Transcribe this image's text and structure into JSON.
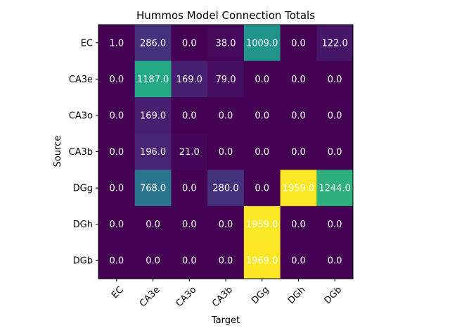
{
  "chart_data": {
    "type": "heatmap",
    "title": "Hummos Model Connection Totals",
    "xlabel": "Target",
    "ylabel": "Source",
    "x_categories": [
      "EC",
      "CA3e",
      "CA3o",
      "CA3b",
      "DGg",
      "DGh",
      "DGb"
    ],
    "y_categories": [
      "EC",
      "CA3e",
      "CA3o",
      "CA3b",
      "DGg",
      "DGh",
      "DGb"
    ],
    "values": [
      [
        1.0,
        286.0,
        0.0,
        38.0,
        1009.0,
        0.0,
        122.0
      ],
      [
        0.0,
        1187.0,
        169.0,
        79.0,
        0.0,
        0.0,
        0.0
      ],
      [
        0.0,
        169.0,
        0.0,
        0.0,
        0.0,
        0.0,
        0.0
      ],
      [
        0.0,
        196.0,
        21.0,
        0.0,
        0.0,
        0.0,
        0.0
      ],
      [
        0.0,
        768.0,
        0.0,
        280.0,
        0.0,
        1959.0,
        1244.0
      ],
      [
        0.0,
        0.0,
        0.0,
        0.0,
        1959.0,
        0.0,
        0.0
      ],
      [
        0.0,
        0.0,
        0.0,
        0.0,
        1969.0,
        0.0,
        0.0
      ]
    ],
    "value_range": [
      0,
      1969
    ],
    "colormap": "viridis",
    "grid": false
  }
}
